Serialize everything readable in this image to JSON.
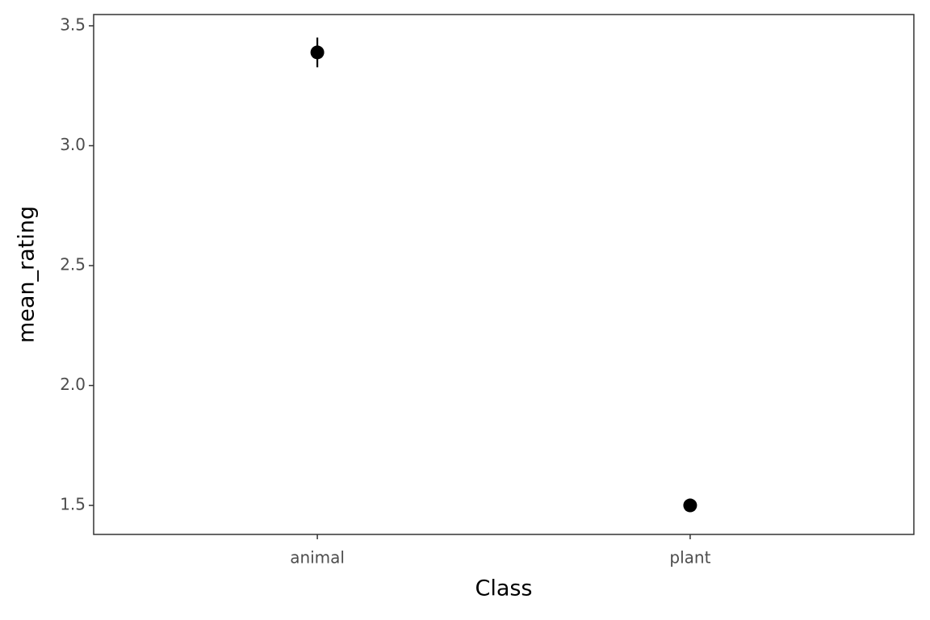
{
  "chart_data": {
    "type": "pointrange",
    "x_label": "Class",
    "y_label": "mean_rating",
    "categories": [
      "animal",
      "plant"
    ],
    "values": [
      3.389,
      1.5
    ],
    "errors": [
      0.062,
      0.008
    ],
    "color": "#000000",
    "ylim": [
      1.379,
      3.547
    ],
    "yticks": [
      1.5,
      {
        "value": 2,
        "label": "2.0"
      },
      2.5,
      {
        "value": 3,
        "label": "3.0"
      },
      3.5
    ],
    "grid": false
  }
}
